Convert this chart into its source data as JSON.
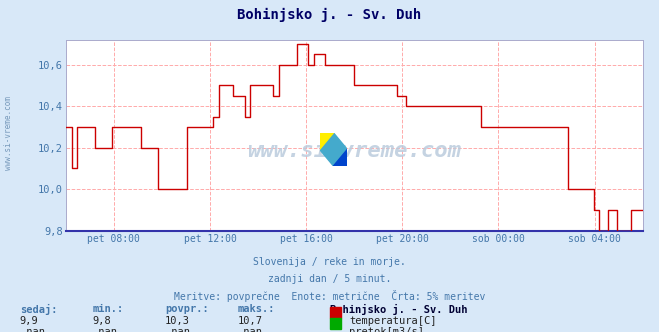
{
  "title": "Bohinjsko j. - Sv. Duh",
  "bg_color": "#d8e8f8",
  "plot_bg_color": "#ffffff",
  "grid_color": "#ffaaaa",
  "line_color": "#cc0000",
  "axis_label_color": "#4477aa",
  "title_color": "#000055",
  "ylim": [
    9.8,
    10.72
  ],
  "yticks": [
    9.8,
    10.0,
    10.2,
    10.4,
    10.6
  ],
  "watermark": "www.si-vreme.com",
  "subtitle1": "Slovenija / reke in morje.",
  "subtitle2": "zadnji dan / 5 minut.",
  "subtitle3": "Meritve: povprečne  Enote: metrične  Črta: 5% meritev",
  "footer_labels": [
    "sedaj:",
    "min.:",
    "povpr.:",
    "maks.:"
  ],
  "footer_values": [
    "9,9",
    "9,8",
    "10,3",
    "10,7"
  ],
  "footer_nan_values": [
    "-nan",
    "-nan",
    "-nan",
    "-nan"
  ],
  "station_name": "Bohinjsko j. - Sv. Duh",
  "legend_temp": "temperatura[C]",
  "legend_flow": "pretok[m3/s]",
  "temp_color": "#cc0000",
  "flow_color": "#00aa00",
  "xtick_labels": [
    "pet 08:00",
    "pet 12:00",
    "pet 16:00",
    "pet 20:00",
    "sob 00:00",
    "sob 04:00"
  ],
  "xtick_positions": [
    0.083,
    0.25,
    0.417,
    0.583,
    0.75,
    0.917
  ],
  "temperature_data": [
    [
      0.0,
      10.3
    ],
    [
      0.005,
      10.3
    ],
    [
      0.01,
      10.1
    ],
    [
      0.015,
      10.1
    ],
    [
      0.02,
      10.3
    ],
    [
      0.04,
      10.3
    ],
    [
      0.05,
      10.2
    ],
    [
      0.06,
      10.2
    ],
    [
      0.08,
      10.3
    ],
    [
      0.12,
      10.3
    ],
    [
      0.13,
      10.2
    ],
    [
      0.15,
      10.2
    ],
    [
      0.16,
      10.0
    ],
    [
      0.2,
      10.0
    ],
    [
      0.21,
      10.3
    ],
    [
      0.24,
      10.3
    ],
    [
      0.255,
      10.35
    ],
    [
      0.265,
      10.5
    ],
    [
      0.28,
      10.5
    ],
    [
      0.29,
      10.45
    ],
    [
      0.3,
      10.45
    ],
    [
      0.31,
      10.35
    ],
    [
      0.315,
      10.35
    ],
    [
      0.32,
      10.5
    ],
    [
      0.35,
      10.5
    ],
    [
      0.36,
      10.45
    ],
    [
      0.37,
      10.6
    ],
    [
      0.39,
      10.6
    ],
    [
      0.4,
      10.7
    ],
    [
      0.415,
      10.7
    ],
    [
      0.42,
      10.6
    ],
    [
      0.43,
      10.65
    ],
    [
      0.44,
      10.65
    ],
    [
      0.45,
      10.6
    ],
    [
      0.49,
      10.6
    ],
    [
      0.5,
      10.5
    ],
    [
      0.57,
      10.5
    ],
    [
      0.575,
      10.45
    ],
    [
      0.58,
      10.45
    ],
    [
      0.59,
      10.4
    ],
    [
      0.71,
      10.4
    ],
    [
      0.72,
      10.3
    ],
    [
      0.86,
      10.3
    ],
    [
      0.87,
      10.0
    ],
    [
      0.91,
      10.0
    ],
    [
      0.915,
      9.9
    ],
    [
      0.925,
      9.8
    ],
    [
      0.94,
      9.9
    ],
    [
      0.95,
      9.9
    ],
    [
      0.955,
      9.8
    ],
    [
      0.975,
      9.8
    ],
    [
      0.98,
      9.9
    ],
    [
      1.0,
      9.9
    ]
  ]
}
